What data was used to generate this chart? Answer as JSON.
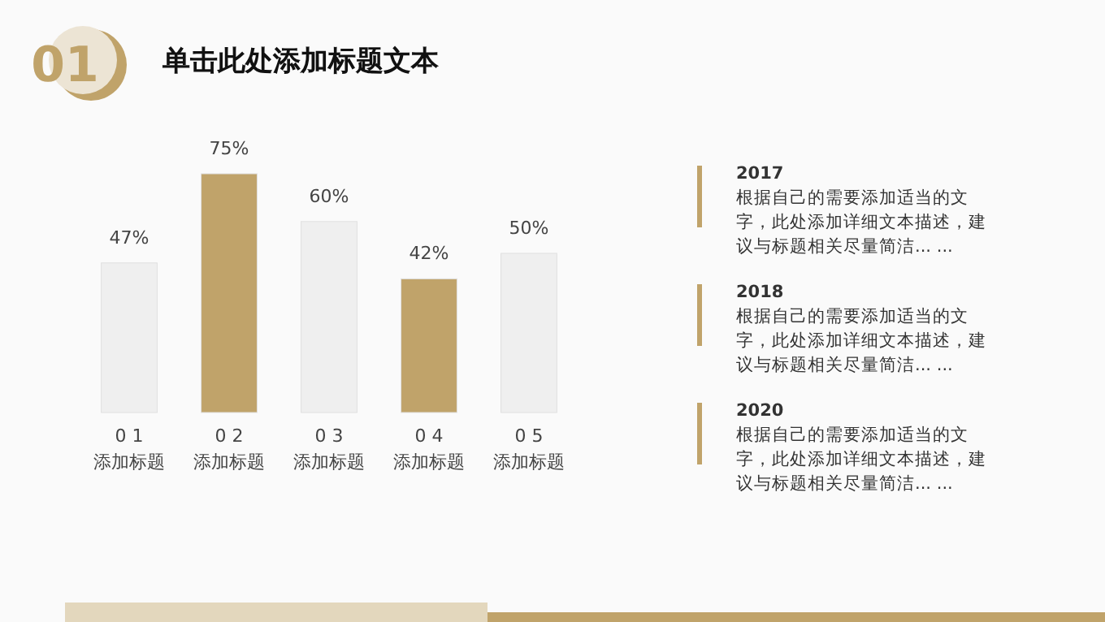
{
  "chart_data": {
    "type": "bar",
    "title": "单击此处添加标题文本",
    "categories": [
      "0 1\n添加标题",
      "0 2\n添加标题",
      "0 3\n添加标题",
      "0 4\n添加标题",
      "0 5\n添加标题"
    ],
    "values": [
      47,
      75,
      60,
      42,
      50
    ],
    "colors": [
      "#efefef",
      "#c0a36a",
      "#efefef",
      "#c0a36a",
      "#efefef"
    ],
    "value_labels": [
      "47%",
      "75%",
      "60%",
      "42%",
      "50%"
    ],
    "annotations": [
      "01",
      "2017",
      "根据自己的需要添加适当的文字，此处添加详细文本描述，建议与标题相关尽量简洁... ...",
      "2018",
      "根据自己的需要添加适当的文字，此处添加详细文本描述，建议与标题相关尽量简洁... ...",
      "2020",
      "根据自己的需要添加适当的文字，此处添加详细文本描述，建议与标题相关尽量简洁... ..."
    ]
  }
}
